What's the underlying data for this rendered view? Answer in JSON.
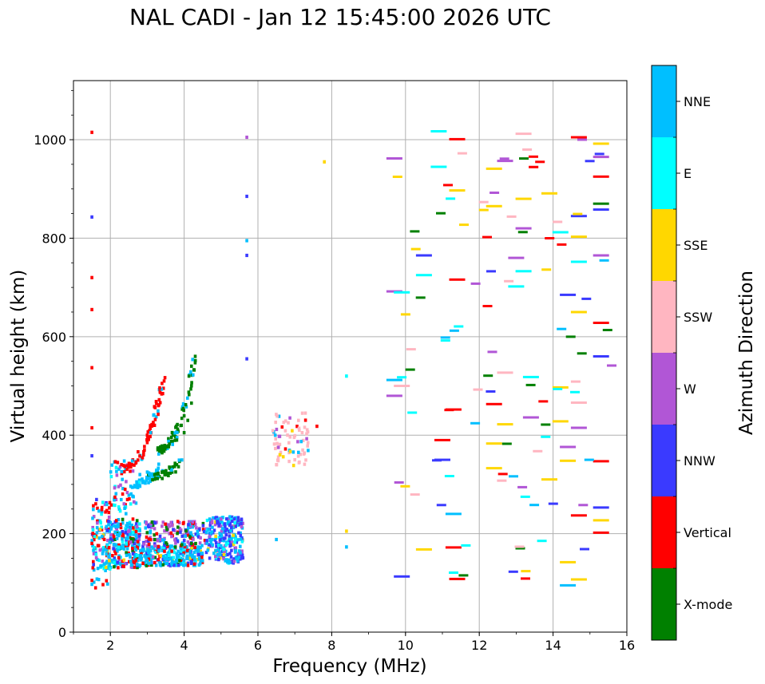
{
  "chart_data": {
    "type": "scatter",
    "title": "NAL CADI - Jan 12 15:45:00 2026 UTC",
    "xlabel": "Frequency (MHz)",
    "ylabel": "Virtual height (km)",
    "xlim": [
      1,
      16
    ],
    "ylim": [
      0,
      1120
    ],
    "xticks": [
      2,
      4,
      6,
      8,
      10,
      12,
      14,
      16
    ],
    "yticks": [
      0,
      200,
      400,
      600,
      800,
      1000
    ],
    "grid": true,
    "colorbar": {
      "label": "Azimuth Direction",
      "position": "right",
      "categories": [
        {
          "name": "X-mode",
          "color": "#008000"
        },
        {
          "name": "Vertical",
          "color": "#ff0000"
        },
        {
          "name": "NNW",
          "color": "#3a3aff"
        },
        {
          "name": "W",
          "color": "#b156d6"
        },
        {
          "name": "SSW",
          "color": "#ffb6c1"
        },
        {
          "name": "SSE",
          "color": "#ffd700"
        },
        {
          "name": "E",
          "color": "#00ffff"
        },
        {
          "name": "NNE",
          "color": "#00bfff"
        }
      ]
    },
    "sample_points": [
      {
        "f": 1.5,
        "h": 1015,
        "az": "Vertical"
      },
      {
        "f": 1.5,
        "h": 843,
        "az": "NNW"
      },
      {
        "f": 1.5,
        "h": 720,
        "az": "Vertical"
      },
      {
        "f": 1.5,
        "h": 655,
        "az": "Vertical"
      },
      {
        "f": 1.5,
        "h": 537,
        "az": "Vertical"
      },
      {
        "f": 1.5,
        "h": 415,
        "az": "Vertical"
      },
      {
        "f": 1.5,
        "h": 358,
        "az": "NNW"
      },
      {
        "f": 1.5,
        "h": 180,
        "az": "Vertical"
      },
      {
        "f": 1.5,
        "h": 105,
        "az": "Vertical"
      },
      {
        "f": 1.6,
        "h": 90,
        "az": "Vertical"
      },
      {
        "f": 2.3,
        "h": 340,
        "az": "Vertical"
      },
      {
        "f": 2.5,
        "h": 335,
        "az": "Vertical"
      },
      {
        "f": 2.7,
        "h": 345,
        "az": "Vertical"
      },
      {
        "f": 2.9,
        "h": 360,
        "az": "Vertical"
      },
      {
        "f": 3.0,
        "h": 385,
        "az": "Vertical"
      },
      {
        "f": 3.2,
        "h": 420,
        "az": "Vertical"
      },
      {
        "f": 3.3,
        "h": 460,
        "az": "Vertical"
      },
      {
        "f": 3.4,
        "h": 505,
        "az": "Vertical"
      },
      {
        "f": 2.4,
        "h": 290,
        "az": "Vertical"
      },
      {
        "f": 2.8,
        "h": 320,
        "az": "NNE"
      },
      {
        "f": 3.0,
        "h": 325,
        "az": "NNE"
      },
      {
        "f": 3.2,
        "h": 320,
        "az": "X-mode"
      },
      {
        "f": 3.4,
        "h": 325,
        "az": "X-mode"
      },
      {
        "f": 3.6,
        "h": 335,
        "az": "X-mode"
      },
      {
        "f": 3.8,
        "h": 340,
        "az": "X-mode"
      },
      {
        "f": 3.4,
        "h": 378,
        "az": "X-mode"
      },
      {
        "f": 3.6,
        "h": 382,
        "az": "X-mode"
      },
      {
        "f": 3.8,
        "h": 390,
        "az": "X-mode"
      },
      {
        "f": 4.0,
        "h": 405,
        "az": "X-mode"
      },
      {
        "f": 4.1,
        "h": 430,
        "az": "X-mode"
      },
      {
        "f": 4.2,
        "h": 465,
        "az": "X-mode"
      },
      {
        "f": 4.2,
        "h": 500,
        "az": "X-mode"
      },
      {
        "f": 4.2,
        "h": 540,
        "az": "X-mode"
      },
      {
        "f": 4.3,
        "h": 560,
        "az": "X-mode"
      },
      {
        "f": 2.6,
        "h": 170,
        "az": "Vertical"
      },
      {
        "f": 2.8,
        "h": 150,
        "az": "NNE"
      },
      {
        "f": 3.0,
        "h": 145,
        "az": "NNE"
      },
      {
        "f": 3.2,
        "h": 210,
        "az": "W"
      },
      {
        "f": 3.4,
        "h": 215,
        "az": "W"
      },
      {
        "f": 3.6,
        "h": 215,
        "az": "W"
      },
      {
        "f": 3.8,
        "h": 145,
        "az": "NNE"
      },
      {
        "f": 4.0,
        "h": 145,
        "az": "NNE"
      },
      {
        "f": 4.2,
        "h": 180,
        "az": "X-mode"
      },
      {
        "f": 4.5,
        "h": 145,
        "az": "NNE"
      },
      {
        "f": 4.9,
        "h": 225,
        "az": "NNW"
      },
      {
        "f": 5.1,
        "h": 220,
        "az": "NNW"
      },
      {
        "f": 5.3,
        "h": 225,
        "az": "NNW"
      },
      {
        "f": 5.0,
        "h": 175,
        "az": "NNE"
      },
      {
        "f": 5.4,
        "h": 165,
        "az": "NNE"
      },
      {
        "f": 6.5,
        "h": 340,
        "az": "SSW"
      },
      {
        "f": 6.6,
        "h": 360,
        "az": "SSE"
      },
      {
        "f": 6.8,
        "h": 400,
        "az": "SSW"
      },
      {
        "f": 7.0,
        "h": 350,
        "az": "SSW"
      },
      {
        "f": 7.1,
        "h": 430,
        "az": "SSW"
      },
      {
        "f": 7.2,
        "h": 405,
        "az": "SSW"
      },
      {
        "f": 7.6,
        "h": 418,
        "az": "Vertical"
      },
      {
        "f": 6.5,
        "h": 188,
        "az": "NNE"
      },
      {
        "f": 5.7,
        "h": 1005,
        "az": "W"
      },
      {
        "f": 5.7,
        "h": 885,
        "az": "NNW"
      },
      {
        "f": 5.7,
        "h": 795,
        "az": "NNE"
      },
      {
        "f": 5.7,
        "h": 765,
        "az": "NNW"
      },
      {
        "f": 5.7,
        "h": 555,
        "az": "NNW"
      },
      {
        "f": 7.8,
        "h": 955,
        "az": "SSE"
      },
      {
        "f": 8.4,
        "h": 520,
        "az": "E"
      },
      {
        "f": 8.4,
        "h": 205,
        "az": "SSE"
      },
      {
        "f": 8.4,
        "h": 173,
        "az": "NNE"
      },
      {
        "f": 9.7,
        "h": 962,
        "az": "W"
      },
      {
        "f": 9.7,
        "h": 692,
        "az": "W"
      },
      {
        "f": 9.9,
        "h": 690,
        "az": "E"
      },
      {
        "f": 9.7,
        "h": 512,
        "az": "NNE"
      },
      {
        "f": 9.7,
        "h": 480,
        "az": "W"
      },
      {
        "f": 9.9,
        "h": 500,
        "az": "SSW"
      },
      {
        "f": 9.9,
        "h": 113,
        "az": "NNW"
      },
      {
        "f": 10.5,
        "h": 765,
        "az": "NNW"
      },
      {
        "f": 10.5,
        "h": 725,
        "az": "E"
      },
      {
        "f": 10.5,
        "h": 168,
        "az": "SSE"
      },
      {
        "f": 10.9,
        "h": 1017,
        "az": "E"
      },
      {
        "f": 10.9,
        "h": 945,
        "az": "E"
      },
      {
        "f": 11.0,
        "h": 390,
        "az": "Vertical"
      },
      {
        "f": 11.0,
        "h": 350,
        "az": "NNW"
      },
      {
        "f": 11.3,
        "h": 452,
        "az": "Vertical"
      },
      {
        "f": 11.3,
        "h": 240,
        "az": "NNE"
      },
      {
        "f": 11.3,
        "h": 172,
        "az": "Vertical"
      },
      {
        "f": 11.4,
        "h": 1001,
        "az": "Vertical"
      },
      {
        "f": 11.4,
        "h": 897,
        "az": "SSE"
      },
      {
        "f": 11.4,
        "h": 716,
        "az": "Vertical"
      },
      {
        "f": 11.4,
        "h": 108,
        "az": "Vertical"
      },
      {
        "f": 12.4,
        "h": 941,
        "az": "SSE"
      },
      {
        "f": 12.4,
        "h": 865,
        "az": "SSE"
      },
      {
        "f": 12.4,
        "h": 463,
        "az": "Vertical"
      },
      {
        "f": 12.4,
        "h": 383,
        "az": "SSE"
      },
      {
        "f": 12.4,
        "h": 333,
        "az": "SSE"
      },
      {
        "f": 12.7,
        "h": 957,
        "az": "W"
      },
      {
        "f": 12.7,
        "h": 527,
        "az": "SSW"
      },
      {
        "f": 12.7,
        "h": 422,
        "az": "SSE"
      },
      {
        "f": 13.0,
        "h": 760,
        "az": "W"
      },
      {
        "f": 13.0,
        "h": 702,
        "az": "E"
      },
      {
        "f": 13.2,
        "h": 1012,
        "az": "SSW"
      },
      {
        "f": 13.2,
        "h": 880,
        "az": "SSE"
      },
      {
        "f": 13.2,
        "h": 820,
        "az": "W"
      },
      {
        "f": 13.2,
        "h": 733,
        "az": "E"
      },
      {
        "f": 13.4,
        "h": 518,
        "az": "E"
      },
      {
        "f": 13.4,
        "h": 436,
        "az": "W"
      },
      {
        "f": 13.9,
        "h": 891,
        "az": "SSE"
      },
      {
        "f": 13.9,
        "h": 310,
        "az": "SSE"
      },
      {
        "f": 14.2,
        "h": 812,
        "az": "E"
      },
      {
        "f": 14.2,
        "h": 497,
        "az": "SSE"
      },
      {
        "f": 14.2,
        "h": 428,
        "az": "SSE"
      },
      {
        "f": 14.4,
        "h": 685,
        "az": "NNW"
      },
      {
        "f": 14.4,
        "h": 376,
        "az": "W"
      },
      {
        "f": 14.4,
        "h": 348,
        "az": "SSE"
      },
      {
        "f": 14.4,
        "h": 142,
        "az": "SSE"
      },
      {
        "f": 14.4,
        "h": 95,
        "az": "NNE"
      },
      {
        "f": 14.7,
        "h": 1005,
        "az": "Vertical"
      },
      {
        "f": 14.7,
        "h": 845,
        "az": "NNW"
      },
      {
        "f": 14.7,
        "h": 803,
        "az": "SSE"
      },
      {
        "f": 14.7,
        "h": 752,
        "az": "E"
      },
      {
        "f": 14.7,
        "h": 650,
        "az": "SSE"
      },
      {
        "f": 14.7,
        "h": 466,
        "az": "SSW"
      },
      {
        "f": 14.7,
        "h": 415,
        "az": "W"
      },
      {
        "f": 14.7,
        "h": 237,
        "az": "Vertical"
      },
      {
        "f": 14.7,
        "h": 107,
        "az": "SSE"
      },
      {
        "f": 15.3,
        "h": 992,
        "az": "SSE"
      },
      {
        "f": 15.3,
        "h": 965,
        "az": "W"
      },
      {
        "f": 15.3,
        "h": 925,
        "az": "Vertical"
      },
      {
        "f": 15.3,
        "h": 870,
        "az": "X-mode"
      },
      {
        "f": 15.3,
        "h": 858,
        "az": "NNW"
      },
      {
        "f": 15.3,
        "h": 765,
        "az": "W"
      },
      {
        "f": 15.3,
        "h": 628,
        "az": "Vertical"
      },
      {
        "f": 15.3,
        "h": 560,
        "az": "NNW"
      },
      {
        "f": 15.3,
        "h": 347,
        "az": "Vertical"
      },
      {
        "f": 15.3,
        "h": 253,
        "az": "NNW"
      },
      {
        "f": 15.3,
        "h": 227,
        "az": "SSE"
      },
      {
        "f": 15.3,
        "h": 202,
        "az": "Vertical"
      }
    ]
  }
}
